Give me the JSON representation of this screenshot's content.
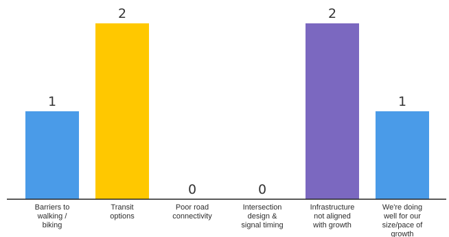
{
  "chart_data": {
    "type": "bar",
    "categories": [
      "Barriers to walking / biking",
      "Transit options",
      "Poor road connectivity",
      "Intersection design & signal timing",
      "Infrastructure not aligned with growth",
      "We're doing well for our size/pace of growth"
    ],
    "category_lines": [
      [
        "Barriers to",
        "walking /",
        "biking"
      ],
      [
        "Transit",
        "options"
      ],
      [
        "Poor road",
        "connectivity"
      ],
      [
        "Intersection",
        "design &",
        "signal timing"
      ],
      [
        "Infrastructure",
        "not aligned",
        "with growth"
      ],
      [
        "We're doing",
        "well for our",
        "size/pace of",
        "growth"
      ]
    ],
    "values": [
      1,
      2,
      0,
      0,
      2,
      1
    ],
    "value_labels": [
      "1",
      "2",
      "0",
      "0",
      "2",
      "1"
    ],
    "colors": [
      "#4a9be8",
      "#ffc800",
      "#4a9be8",
      "#4a9be8",
      "#7b68c0",
      "#4a9be8"
    ],
    "ylim": [
      0,
      2
    ],
    "grid": false,
    "legend": "none",
    "title": "",
    "xlabel": "",
    "ylabel": ""
  }
}
